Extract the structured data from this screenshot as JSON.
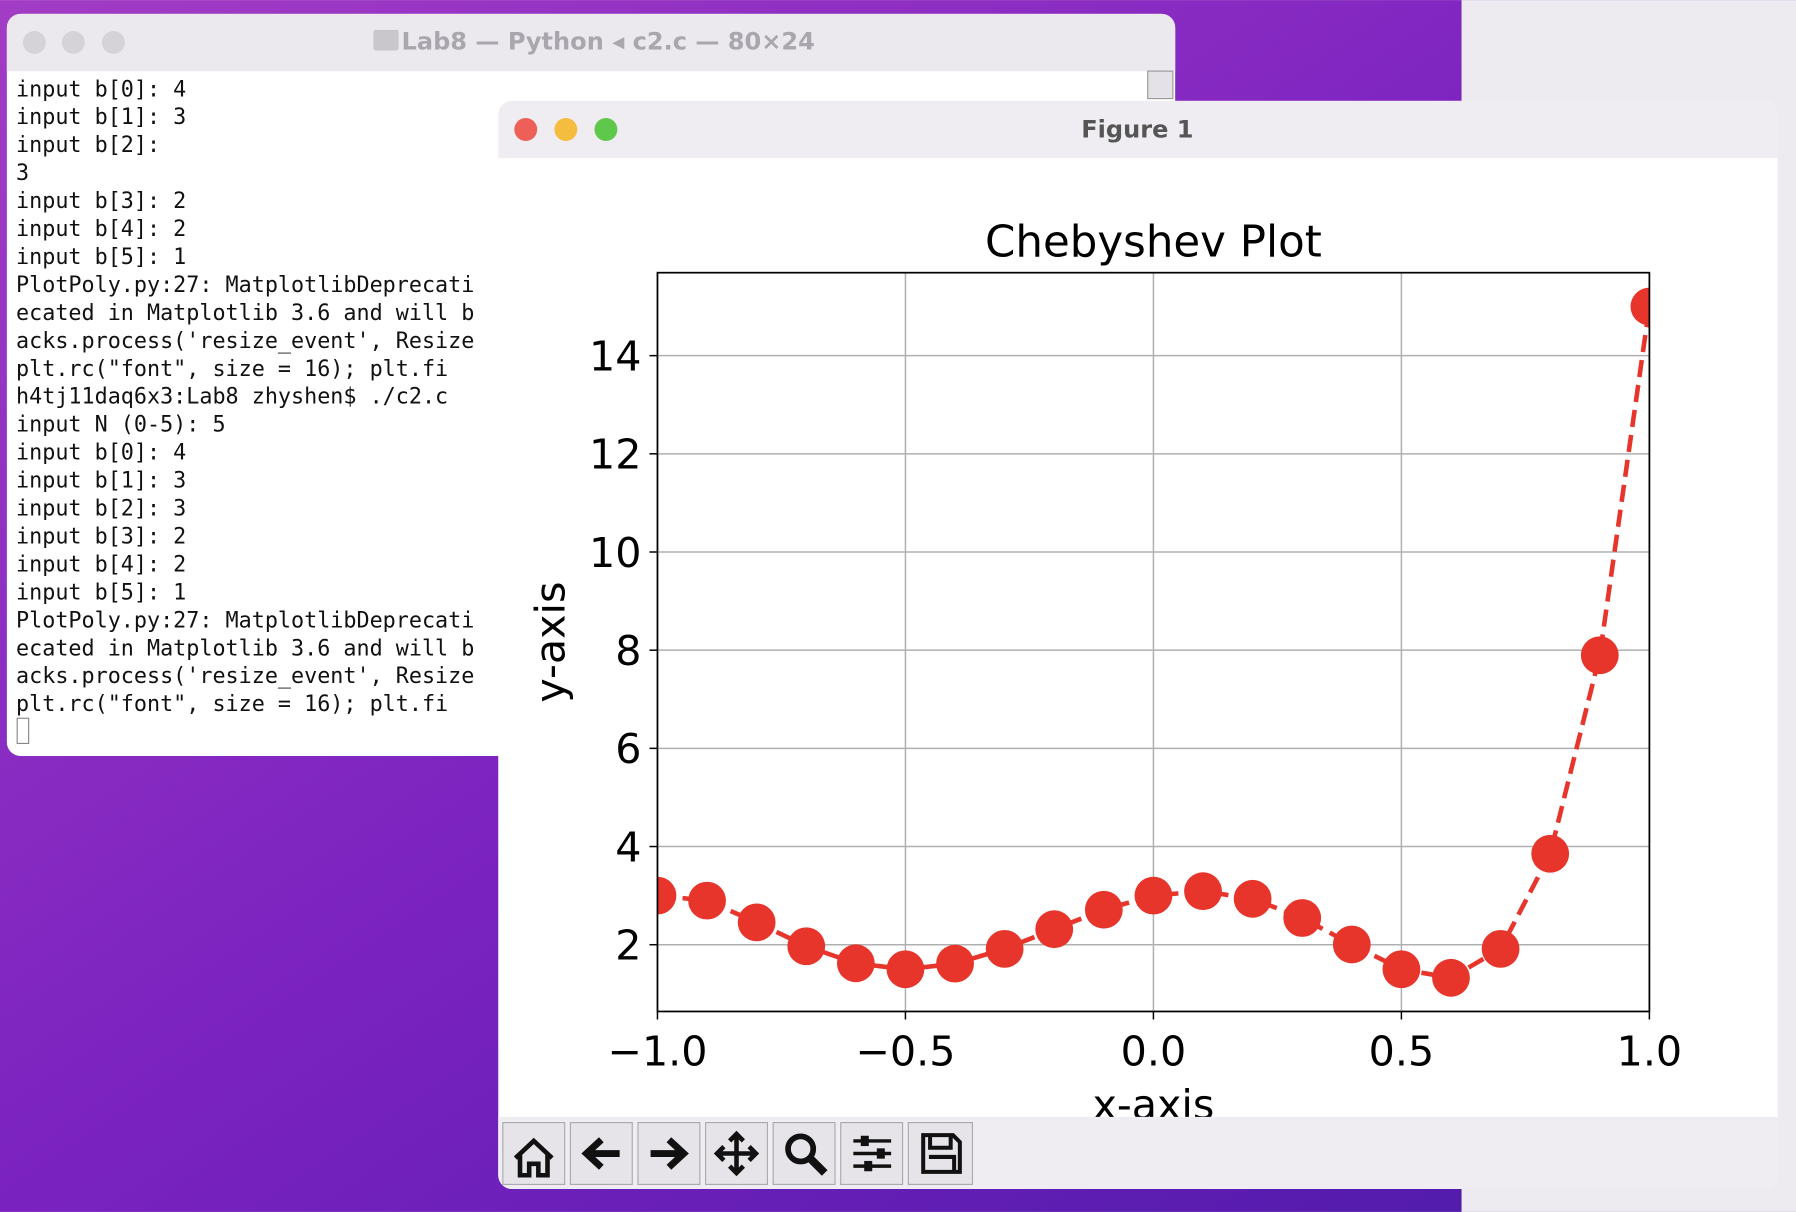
{
  "terminal": {
    "title": "Lab8 — Python ◂ c2.c — 80×24",
    "lines": [
      "input b[0]: 4",
      "input b[1]: 3",
      "input b[2]:",
      "3",
      "input b[3]: 2",
      "input b[4]: 2",
      "input b[5]: 1",
      "PlotPoly.py:27: MatplotlibDeprecati",
      "ecated in Matplotlib 3.6 and will b",
      "acks.process('resize_event', Resize",
      "  plt.rc(\"font\", size = 16); plt.fi",
      "h4tj11daq6x3:Lab8 zhyshen$ ./c2.c",
      "input N (0-5): 5",
      "input b[0]: 4",
      "input b[1]: 3",
      "input b[2]: 3",
      "input b[3]: 2",
      "input b[4]: 2",
      "input b[5]: 1",
      "PlotPoly.py:27: MatplotlibDeprecati",
      "ecated in Matplotlib 3.6 and will b",
      "acks.process('resize_event', Resize",
      "  plt.rc(\"font\", size = 16); plt.fi"
    ]
  },
  "figure_window": {
    "title": "Figure 1"
  },
  "chart_data": {
    "type": "line",
    "title": "Chebyshev Plot",
    "xlabel": "x-axis",
    "ylabel": "y-axis",
    "x": [
      -1.0,
      -0.9,
      -0.8,
      -0.7,
      -0.6,
      -0.5,
      -0.4,
      -0.3,
      -0.2,
      -0.1,
      0.0,
      0.1,
      0.2,
      0.3,
      0.4,
      0.5,
      0.6,
      0.7,
      0.8,
      0.9,
      1.0
    ],
    "values": [
      3.0,
      2.898,
      2.455,
      1.969,
      1.621,
      1.5,
      1.614,
      1.915,
      2.316,
      2.713,
      3.0,
      3.09,
      2.935,
      2.544,
      2.005,
      1.5,
      1.326,
      1.915,
      3.853,
      7.897,
      15.0
    ],
    "color": "#e8352b",
    "line_style": "dashed",
    "marker": "circle",
    "xlim": [
      -1.0,
      1.0
    ],
    "ylim": [
      0.64,
      15.69
    ],
    "xticks": [
      {
        "value": -1.0,
        "label": "−1.0"
      },
      {
        "value": -0.5,
        "label": "−0.5"
      },
      {
        "value": 0.0,
        "label": "0.0"
      },
      {
        "value": 0.5,
        "label": "0.5"
      },
      {
        "value": 1.0,
        "label": "1.0"
      }
    ],
    "yticks": [
      2,
      4,
      6,
      8,
      10,
      12,
      14
    ],
    "grid": true
  }
}
